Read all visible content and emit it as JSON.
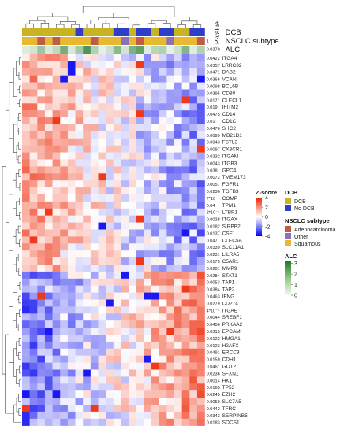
{
  "chart_data": {
    "type": "heatmap",
    "title": "",
    "pvalue_header": "P-value",
    "column_annotations": [
      {
        "label": "DCB",
        "pvalue": ""
      },
      {
        "label": "NSCLC subtype",
        "pvalue": "1"
      },
      {
        "label": "ALC",
        "pvalue": "0.0279"
      }
    ],
    "genes": [
      "ITGA4",
      "LRRC32",
      "DAB2",
      "VCAN",
      "BCL6B",
      "CD80",
      "CLECL1",
      "IFITM2",
      "CD14",
      "CD1C",
      "SHC2",
      "MB21D1",
      "FSTL3",
      "CX3CR1",
      "ITGAM",
      "ITGB3",
      "GPC4",
      "TMEM173",
      "FGFR1",
      "TGFB3",
      "COMP",
      "TPM1",
      "LTBP1",
      "ITGAX",
      "SIRPB2",
      "CSF1",
      "CLEC5A",
      "SLC11A1",
      "LILRA5",
      "C5AR1",
      "MMP9",
      "STAT1",
      "TAP1",
      "TAP2",
      "IFNG",
      "CD274",
      "ITGAE",
      "SREBF1",
      "PRKAA2",
      "EPCAM",
      "HMGA1",
      "H2AFX",
      "ERCC3",
      "CDH1",
      "GOT2",
      "SFXN1",
      "HK1",
      "TP53",
      "EZH2",
      "SLC7A5",
      "TFRC",
      "SERPINB5",
      "SOCS1"
    ],
    "pvalues": [
      "0.0422",
      "0.0357",
      "0.0471",
      "0.0366",
      "0.0098",
      "0.0395",
      "0.0171",
      "0.019",
      "0.0475",
      "0.01",
      "0.0476",
      "0.0099",
      "0.0043",
      "0.0097",
      "0.0232",
      "0.0043",
      "0.038",
      "0.0072",
      "0.0057",
      "0.0236",
      "7*10⁻⁴",
      "0.04",
      "2*10⁻⁴",
      "0.0028",
      "0.0182",
      "0.0137",
      "0.047",
      "0.0339",
      "0.0231",
      "0.0175",
      "0.0281",
      "0.0284",
      "0.0053",
      "0.0384",
      "0.0463",
      "0.0279",
      "4*10⁻⁴",
      "0.0044",
      "0.0456",
      "0.0315",
      "0.0122",
      "0.0123",
      "0.0491",
      "0.0159",
      "0.0461",
      "0.0236",
      "0.0014",
      "0.0165",
      "0.0245",
      "0.0059",
      "0.0442",
      "0.0343",
      "0.0183"
    ],
    "n_samples": 24,
    "dcb_status": [
      1,
      1,
      1,
      1,
      1,
      1,
      1,
      0,
      1,
      1,
      1,
      1,
      0,
      0,
      1,
      0,
      0,
      1,
      0,
      0,
      1,
      1,
      0,
      0
    ],
    "nsclc_subtype": [
      2,
      2,
      0,
      2,
      0,
      2,
      2,
      2,
      2,
      0,
      2,
      2,
      2,
      1,
      2,
      0,
      2,
      2,
      2,
      1,
      2,
      2,
      2,
      0
    ],
    "alc_values": [
      0.3,
      0.5,
      1.3,
      0.4,
      0.8,
      1.9,
      0.4,
      1.2,
      2.5,
      1.0,
      0.2,
      0.6,
      1.6,
      0.5,
      1.8,
      2.2,
      0.3,
      0.9,
      1.0,
      0.2,
      0.6,
      1.7,
      0.3,
      1.0
    ],
    "zscore_range": [
      -4,
      4
    ],
    "zscore_ticks": [
      "4",
      "2",
      "0",
      "-2",
      "-4"
    ],
    "zscore_title": "Z-score",
    "zscore_colors": [
      "#0000ee",
      "#ffffff",
      "#ee2200"
    ],
    "legend_dcb": {
      "title": "DCB",
      "items": [
        {
          "label": "DCB",
          "color": "#c8b422"
        },
        {
          "label": "No DCB",
          "color": "#2e3ec8"
        }
      ]
    },
    "legend_subtype": {
      "title": "NSCLC subtype",
      "items": [
        {
          "label": "Adenocarcinoma",
          "color": "#c25a4a"
        },
        {
          "label": "Other",
          "color": "#8a72b8"
        },
        {
          "label": "Squamous",
          "color": "#e8b830"
        }
      ]
    },
    "legend_alc": {
      "title": "ALC",
      "ticks": [
        "3",
        "2",
        "1",
        "0"
      ],
      "range": [
        0,
        3.2
      ],
      "colors": [
        "#f4f8f2",
        "#1f7a2a"
      ]
    }
  }
}
